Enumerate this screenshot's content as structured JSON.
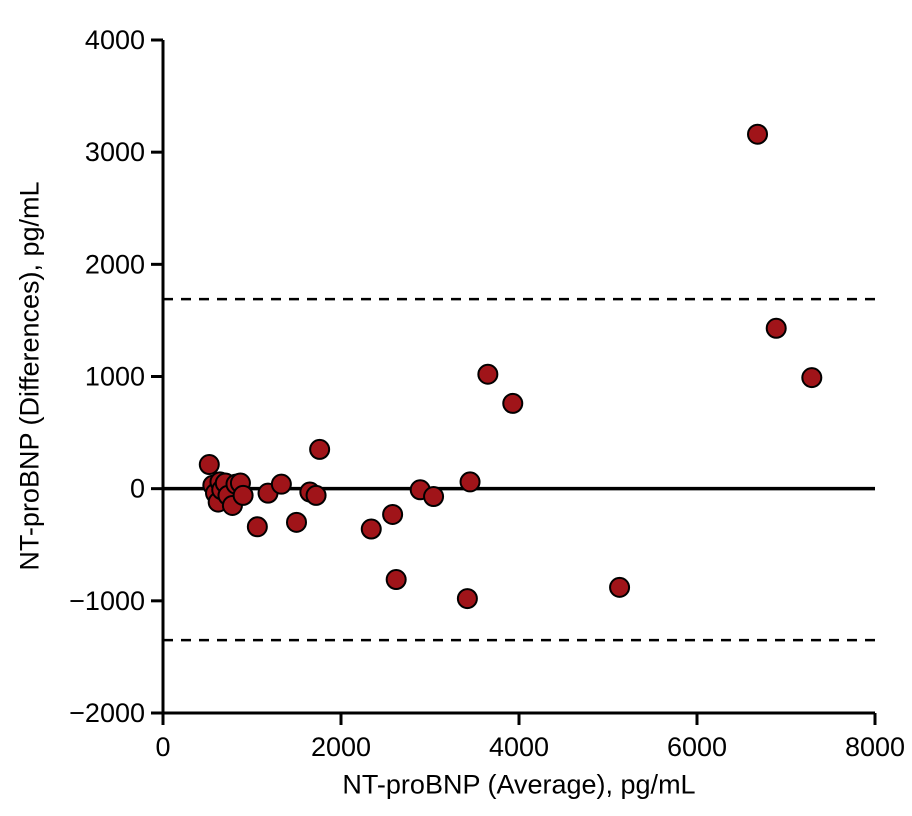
{
  "chart_data": {
    "type": "scatter",
    "title": "",
    "xlabel": "NT-proBNP (Average), pg/mL",
    "ylabel": "NT-proBNP (Differences), pg/mL",
    "xlim": [
      0,
      8000
    ],
    "ylim": [
      -2000,
      4000
    ],
    "x_ticks": [
      0,
      2000,
      4000,
      6000,
      8000
    ],
    "x_tick_labels": [
      "0",
      "2000",
      "4000",
      "6000",
      "8000"
    ],
    "y_ticks": [
      -2000,
      -1000,
      0,
      1000,
      2000,
      3000,
      4000
    ],
    "y_tick_labels": [
      "−2000",
      "−1000",
      "0",
      "1000",
      "2000",
      "3000",
      "4000"
    ],
    "grid": false,
    "legend": "none",
    "marker_color": "#A01419",
    "marker_edge_color": "#000000",
    "lines": {
      "mean": 0,
      "upper_loa": 1690,
      "lower_loa": -1350
    },
    "points": [
      [
        520,
        215
      ],
      [
        560,
        30
      ],
      [
        590,
        -40
      ],
      [
        620,
        -120
      ],
      [
        640,
        60
      ],
      [
        660,
        -10
      ],
      [
        700,
        50
      ],
      [
        730,
        -60
      ],
      [
        780,
        -150
      ],
      [
        820,
        40
      ],
      [
        870,
        50
      ],
      [
        900,
        -60
      ],
      [
        1060,
        -340
      ],
      [
        1180,
        -40
      ],
      [
        1330,
        40
      ],
      [
        1500,
        -300
      ],
      [
        1650,
        -30
      ],
      [
        1720,
        -60
      ],
      [
        1760,
        350
      ],
      [
        2340,
        -360
      ],
      [
        2580,
        -230
      ],
      [
        2620,
        -810
      ],
      [
        2890,
        -10
      ],
      [
        3040,
        -70
      ],
      [
        3420,
        -980
      ],
      [
        3450,
        60
      ],
      [
        3650,
        1020
      ],
      [
        3930,
        760
      ],
      [
        5130,
        -880
      ],
      [
        6680,
        3160
      ],
      [
        6890,
        1430
      ],
      [
        7290,
        990
      ]
    ]
  }
}
